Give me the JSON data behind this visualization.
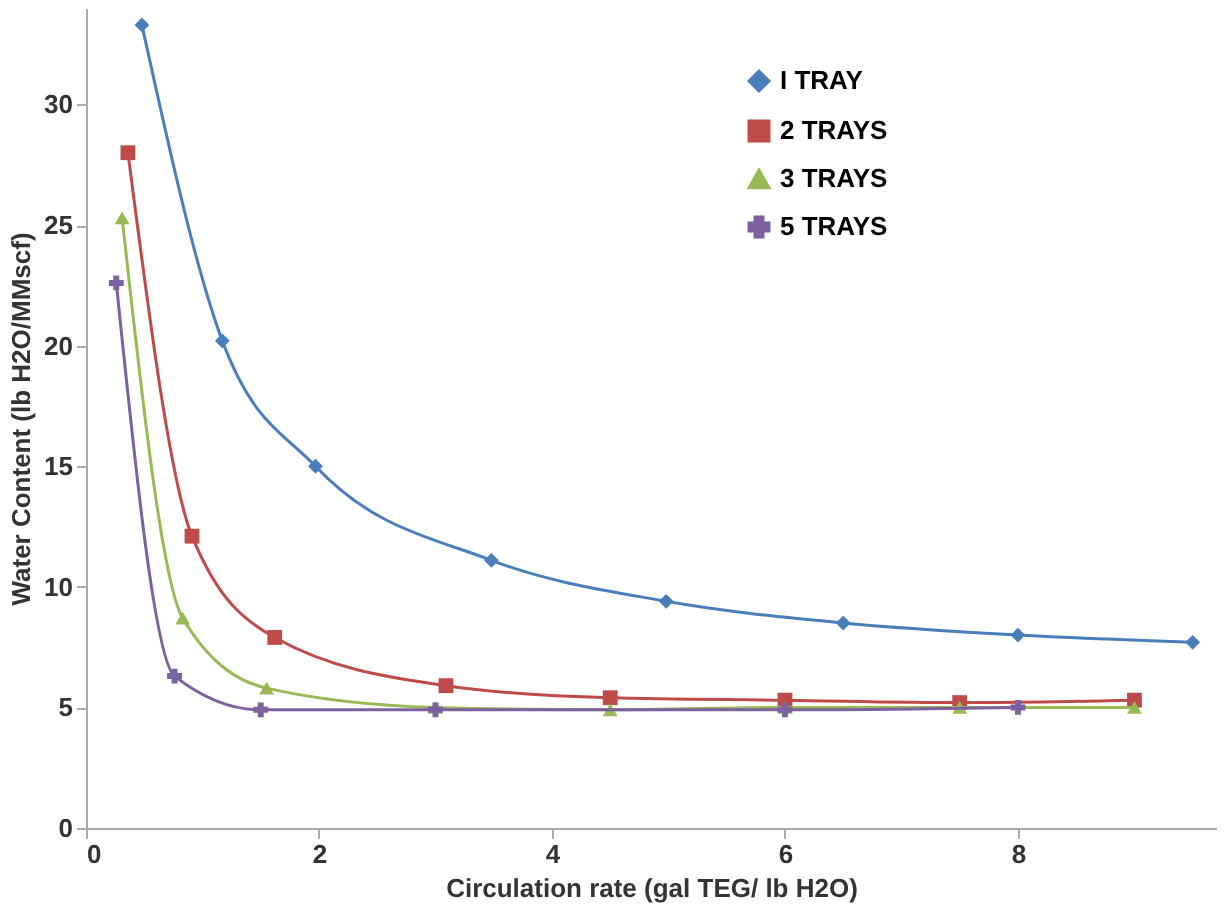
{
  "chart_data": {
    "type": "line",
    "xlabel": "Circulation rate (gal TEG/ lb H2O)",
    "ylabel": "Water Content (lb H2O/MMscf)",
    "xlim": [
      0,
      9.7
    ],
    "xticks": [
      0,
      2,
      4,
      6,
      8
    ],
    "ylim": [
      0,
      34
    ],
    "yticks": [
      0,
      5,
      10,
      15,
      20,
      25,
      30
    ],
    "grid": false,
    "legend": "top right",
    "series": [
      {
        "name": "I TRAY",
        "color": "#4a7ebb",
        "marker": "diamond",
        "x": [
          0.48,
          1.17,
          1.97,
          3.48,
          4.98,
          6.5,
          8.0,
          9.5
        ],
        "values": [
          33.3,
          20.2,
          15.0,
          11.1,
          9.4,
          8.5,
          8.0,
          7.7
        ]
      },
      {
        "name": "2 TRAYS",
        "color": "#be4b48",
        "marker": "square",
        "x": [
          0.36,
          0.91,
          1.62,
          3.09,
          4.5,
          6.0,
          7.5,
          9.0
        ],
        "values": [
          28.0,
          12.1,
          7.9,
          5.9,
          5.4,
          5.3,
          5.2,
          5.3
        ]
      },
      {
        "name": "3 TRAYS",
        "color": "#98b954",
        "marker": "triangle",
        "x": [
          0.31,
          0.83,
          1.55,
          3.0,
          4.5,
          6.0,
          7.5,
          9.0
        ],
        "values": [
          25.3,
          8.7,
          5.8,
          5.0,
          4.9,
          5.0,
          5.0,
          5.0
        ]
      },
      {
        "name": "5 TRAYS",
        "color": "#7d60a0",
        "marker": "cross",
        "x": [
          0.26,
          0.76,
          1.5,
          3.0,
          6.0,
          8.0
        ],
        "values": [
          22.6,
          6.3,
          4.9,
          4.9,
          4.9,
          5.0
        ]
      }
    ]
  }
}
